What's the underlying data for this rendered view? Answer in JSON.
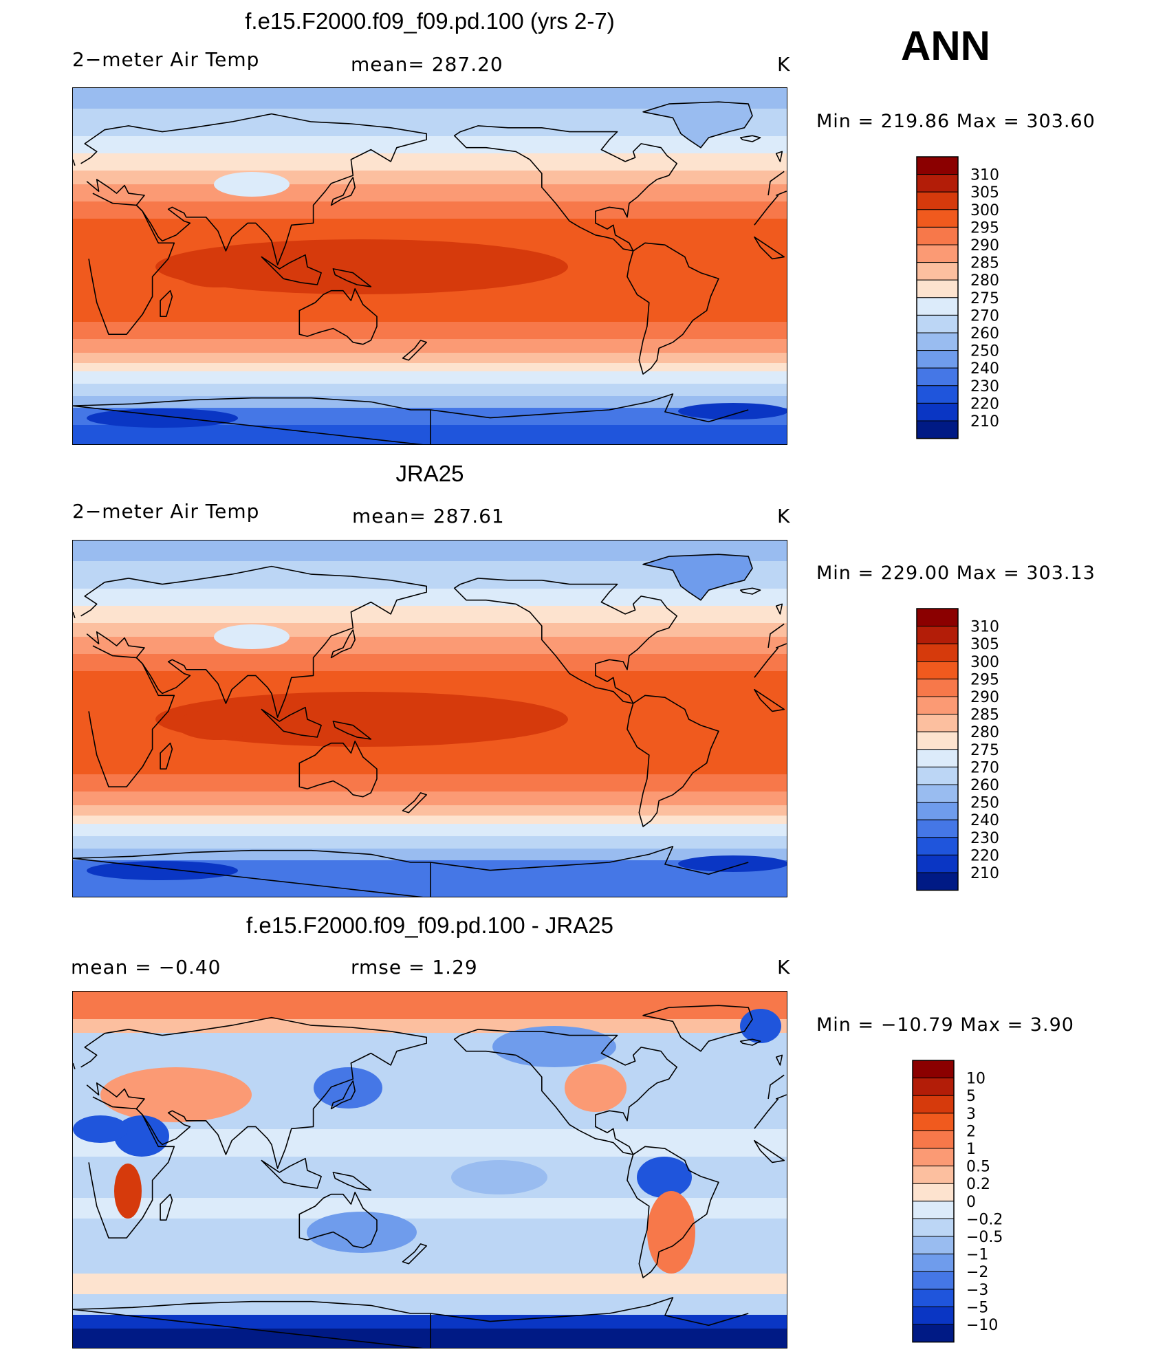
{
  "season": "ANN",
  "panels": [
    {
      "title": "f.e15.F2000.f09_f09.pd.100 (yrs 2-7)",
      "left_label": "2−meter Air Temp",
      "center_label": "mean=  287.20",
      "units": "K",
      "minmax": "Min  =  219.86  Max  =  303.60",
      "colorbar": {
        "levels": [
          "310",
          "305",
          "300",
          "295",
          "290",
          "285",
          "280",
          "275",
          "270",
          "260",
          "250",
          "240",
          "230",
          "220",
          "210"
        ],
        "colors": [
          "#8b0000",
          "#b31d08",
          "#d63a0c",
          "#f05a1e",
          "#f7784a",
          "#fb9a74",
          "#fcbf9f",
          "#fde3cf",
          "#dcebfa",
          "#bcd6f5",
          "#99bcf0",
          "#6f9cec",
          "#4577e6",
          "#1f55dc",
          "#0a36c4",
          "#001a85"
        ]
      },
      "map_style": "model"
    },
    {
      "title": "JRA25",
      "left_label": "2−meter Air Temp",
      "center_label": "mean=  287.61",
      "units": "K",
      "minmax": "Min  =  229.00  Max  =  303.13",
      "colorbar": {
        "levels": [
          "310",
          "305",
          "300",
          "295",
          "290",
          "285",
          "280",
          "275",
          "270",
          "260",
          "250",
          "240",
          "230",
          "220",
          "210"
        ],
        "colors": [
          "#8b0000",
          "#b31d08",
          "#d63a0c",
          "#f05a1e",
          "#f7784a",
          "#fb9a74",
          "#fcbf9f",
          "#fde3cf",
          "#dcebfa",
          "#bcd6f5",
          "#99bcf0",
          "#6f9cec",
          "#4577e6",
          "#1f55dc",
          "#0a36c4",
          "#001a85"
        ]
      },
      "map_style": "obs"
    },
    {
      "title": "f.e15.F2000.f09_f09.pd.100 - JRA25",
      "left_label": "mean  =    −0.40",
      "center_label": "rmse  =     1.29",
      "units": "K",
      "minmax": "Min  =  −10.79  Max  =      3.90",
      "colorbar": {
        "levels": [
          "10",
          "5",
          "3",
          "2",
          "1",
          "0.5",
          "0.2",
          "0",
          "−0.2",
          "−0.5",
          "−1",
          "−2",
          "−3",
          "−5",
          "−10"
        ],
        "colors": [
          "#8b0000",
          "#b31d08",
          "#d63a0c",
          "#f05a1e",
          "#f7784a",
          "#fb9a74",
          "#fcbf9f",
          "#fde3cf",
          "#dcebfa",
          "#bcd6f5",
          "#99bcf0",
          "#6f9cec",
          "#4577e6",
          "#1f55dc",
          "#0a36c4",
          "#001a85"
        ]
      },
      "map_style": "diff"
    }
  ]
}
